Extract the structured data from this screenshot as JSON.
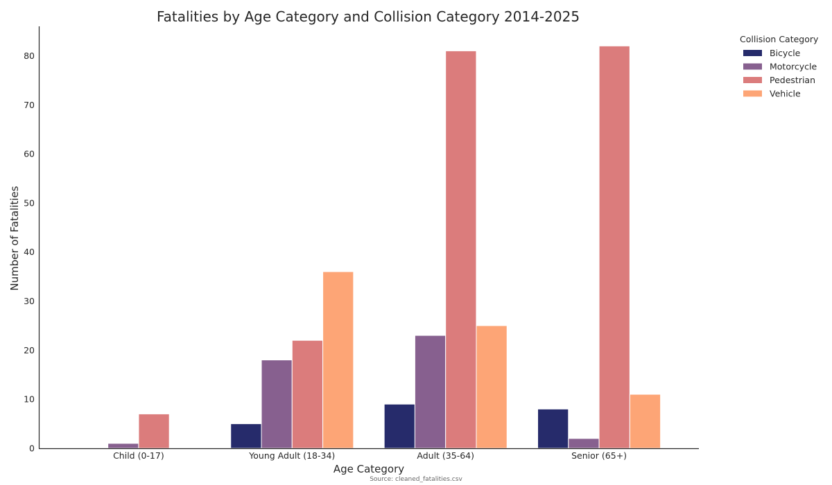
{
  "chart_data": {
    "type": "bar",
    "title": "Fatalities by Age Category and Collision Category 2014-2025",
    "xlabel": "Age Category",
    "ylabel": "Number of Fatalities",
    "caption": "Source: cleaned_fatalities.csv",
    "categories": [
      "Child (0-17)",
      "Young Adult (18-34)",
      "Adult (35-64)",
      "Senior (65+)"
    ],
    "ylim": [
      0,
      86
    ],
    "yticks": [
      0,
      10,
      20,
      30,
      40,
      50,
      60,
      70,
      80
    ],
    "grid": false,
    "legend": {
      "title": "Collision Category",
      "placement": "outside-top-right"
    },
    "series": [
      {
        "name": "Bicycle",
        "color": "#262b6b",
        "values": [
          0,
          5,
          9,
          8
        ]
      },
      {
        "name": "Motorcycle",
        "color": "#87608f",
        "values": [
          1,
          18,
          23,
          2
        ]
      },
      {
        "name": "Pedestrian",
        "color": "#db7c7c",
        "values": [
          7,
          22,
          81,
          82
        ]
      },
      {
        "name": "Vehicle",
        "color": "#fda576",
        "values": [
          0,
          36,
          25,
          11
        ]
      }
    ]
  }
}
